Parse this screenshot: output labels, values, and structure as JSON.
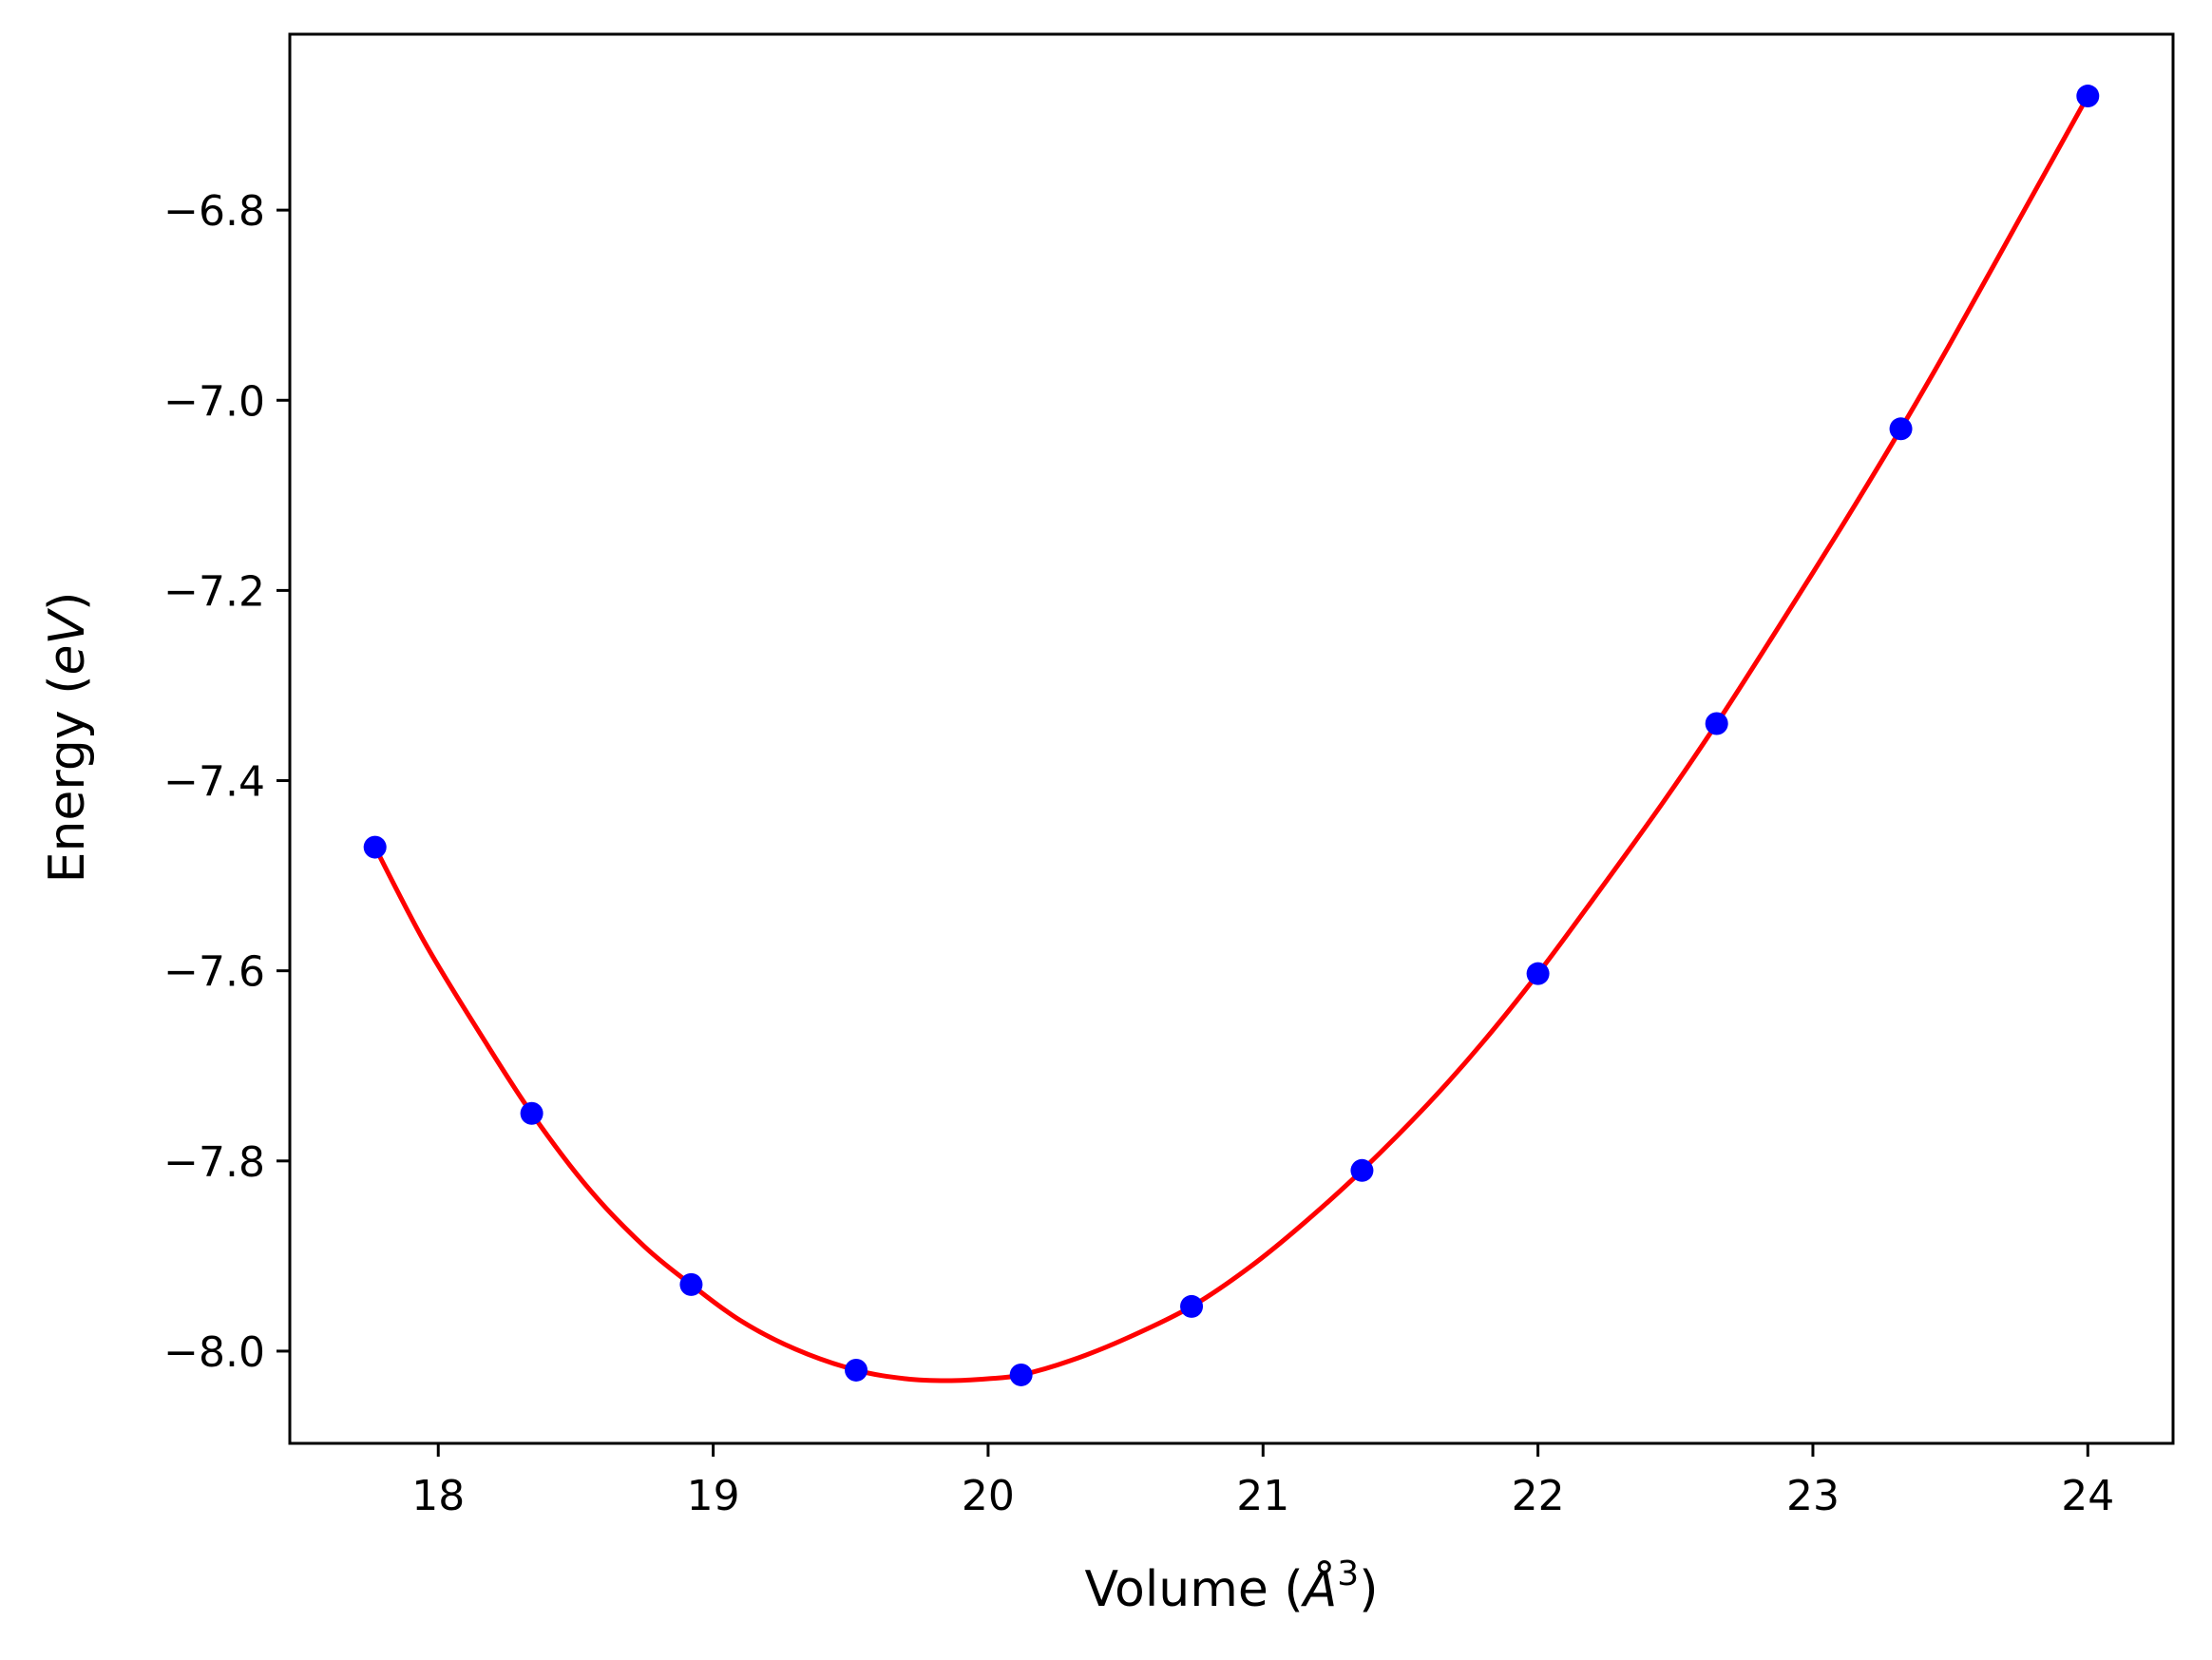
{
  "chart_data": {
    "type": "scatter",
    "title": "",
    "xlabel": {
      "prefix": "Volume (",
      "symbol": "Å",
      "exponent": "3",
      "suffix": ")"
    },
    "ylabel": {
      "prefix": "Energy (",
      "unit": "eV",
      "suffix": ")"
    },
    "xlim": [
      17.46,
      24.31
    ],
    "ylim": [
      -8.097,
      -6.615
    ],
    "xticks": [
      {
        "value": 18,
        "label": "18"
      },
      {
        "value": 19,
        "label": "19"
      },
      {
        "value": 20,
        "label": "20"
      },
      {
        "value": 21,
        "label": "21"
      },
      {
        "value": 22,
        "label": "22"
      },
      {
        "value": 23,
        "label": "23"
      },
      {
        "value": 24,
        "label": "24"
      }
    ],
    "yticks": [
      {
        "value": -6.8,
        "label": "−6.8"
      },
      {
        "value": -7.0,
        "label": "−7.0"
      },
      {
        "value": -7.2,
        "label": "−7.2"
      },
      {
        "value": -7.4,
        "label": "−7.4"
      },
      {
        "value": -7.6,
        "label": "−7.6"
      },
      {
        "value": -7.8,
        "label": "−7.8"
      },
      {
        "value": -8.0,
        "label": "−8.0"
      }
    ],
    "grid": false,
    "series": [
      {
        "kind": "points",
        "color": "#0000ff",
        "x": [
          17.77,
          18.34,
          18.92,
          19.52,
          20.12,
          20.74,
          21.36,
          22.0,
          22.65,
          23.32,
          24.0
        ],
        "y": [
          -7.47,
          -7.75,
          -7.93,
          -8.02,
          -8.025,
          -7.953,
          -7.81,
          -7.603,
          -7.34,
          -7.03,
          -6.68
        ]
      },
      {
        "kind": "fit-curve",
        "color": "#ff0000",
        "x": [
          17.77,
          17.95,
          18.15,
          18.34,
          18.55,
          18.75,
          18.92,
          19.1,
          19.3,
          19.52,
          19.7,
          19.85,
          20.0,
          20.12,
          20.3,
          20.5,
          20.74,
          20.95,
          21.15,
          21.36,
          21.6,
          21.8,
          22.0,
          22.2,
          22.45,
          22.65,
          22.85,
          23.1,
          23.32,
          23.5,
          23.75,
          24.0
        ],
        "y": [
          -7.47,
          -7.57,
          -7.665,
          -7.75,
          -7.83,
          -7.89,
          -7.93,
          -7.968,
          -7.998,
          -8.02,
          -8.029,
          -8.031,
          -8.029,
          -8.025,
          -8.01,
          -7.987,
          -7.953,
          -7.912,
          -7.865,
          -7.81,
          -7.74,
          -7.675,
          -7.603,
          -7.525,
          -7.425,
          -7.34,
          -7.25,
          -7.135,
          -7.03,
          -6.94,
          -6.81,
          -6.68
        ]
      }
    ]
  }
}
